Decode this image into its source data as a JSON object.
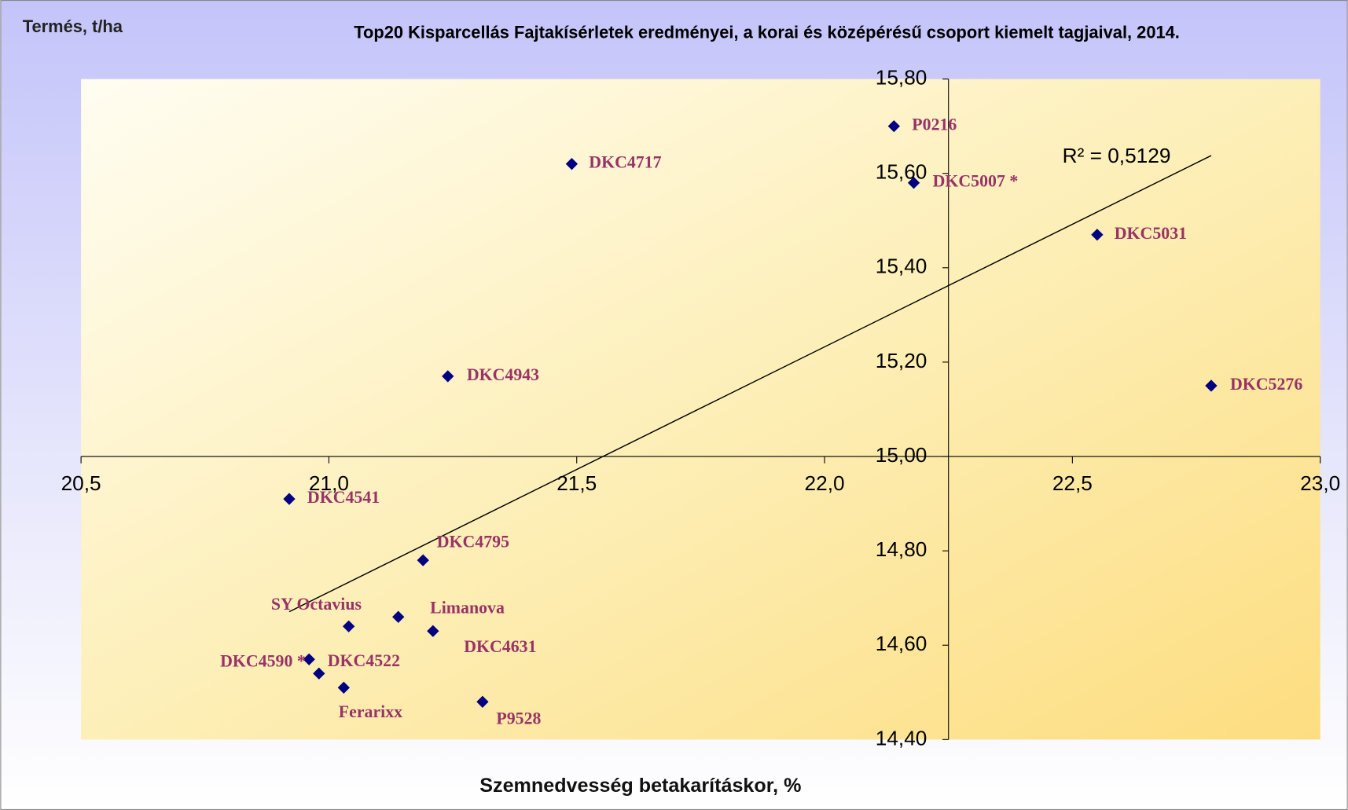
{
  "chart_data": {
    "type": "scatter",
    "title": "Top20 Kisparcellás Fajtakísérletek eredményei, a korai és középérésű csoport kiemelt tagjaival, 2014.",
    "ylabel": "Termés, t/ha",
    "xlabel": "Szemnedvesség betakarításkor, %",
    "annotation": "R² = 0,5129",
    "trendline": true,
    "color": "#000080",
    "label_color": "#993366",
    "point_labels": [
      "P0216",
      "DKC4717",
      "DKC5007 *",
      "DKC5031",
      "DKC4943",
      "DKC5276",
      "DKC4541",
      "DKC4795",
      "Limanova",
      "SY Octavius",
      "DKC4631",
      "DKC4590 *",
      "DKC4522",
      "Ferarixx",
      "P9528"
    ],
    "x": [
      22.14,
      21.49,
      22.18,
      22.55,
      21.24,
      22.78,
      20.92,
      21.19,
      21.14,
      21.04,
      21.21,
      20.96,
      20.98,
      21.03,
      21.31
    ],
    "values": [
      15.7,
      15.62,
      15.58,
      15.47,
      15.17,
      15.15,
      14.91,
      14.78,
      14.66,
      14.64,
      14.63,
      14.57,
      14.54,
      14.51,
      14.48
    ],
    "xlim": [
      20.5,
      23.0
    ],
    "xticks": [
      {
        "value": 20.5,
        "label": "20,5"
      },
      {
        "value": 21.0,
        "label": "21,0"
      },
      {
        "value": 21.5,
        "label": "21,5"
      },
      {
        "value": 22.0,
        "label": "22,0"
      },
      {
        "value": 22.5,
        "label": "22,5"
      },
      {
        "value": 23.0,
        "label": "23,0"
      }
    ],
    "ylim": [
      14.4,
      15.8
    ],
    "yticks": [
      {
        "value": 14.4,
        "label": "14,40"
      },
      {
        "value": 14.6,
        "label": "14,60"
      },
      {
        "value": 14.8,
        "label": "14,80"
      },
      {
        "value": 15.0,
        "label": "15,00"
      },
      {
        "value": 15.2,
        "label": "15,20"
      },
      {
        "value": 15.4,
        "label": "15,40"
      },
      {
        "value": 15.6,
        "label": "15,60"
      },
      {
        "value": 15.8,
        "label": "15,80"
      }
    ],
    "y_axis_at": 22.25,
    "x_axis_at": 15.0
  }
}
